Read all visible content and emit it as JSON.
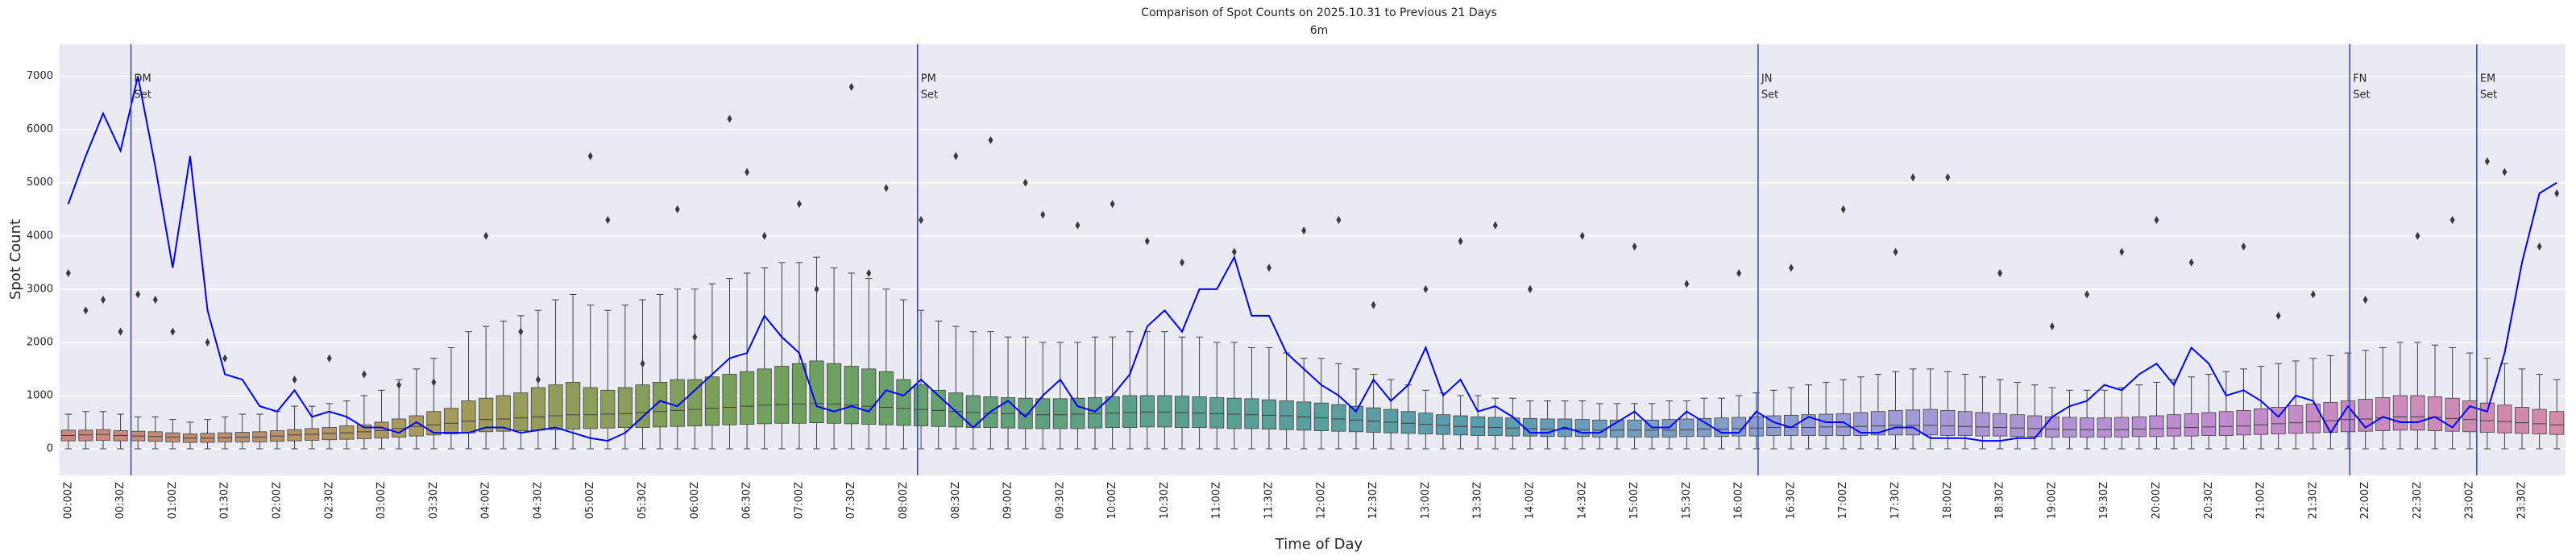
{
  "chart_data": {
    "type": "box",
    "title": "Comparison of Spot Counts on 2025.10.31 to Previous 21 Days",
    "subtitle": "6m",
    "x_label": "Time of Day",
    "y_label": "Spot Count",
    "ylim": [
      -500,
      7600
    ],
    "yticks": [
      0,
      1000,
      2000,
      3000,
      4000,
      5000,
      6000,
      7000
    ],
    "grid": true,
    "background": "#eaeaf2",
    "palette": [
      "#c9877f",
      "#a89a5a",
      "#6fa15a",
      "#5aa08a",
      "#5a9dad",
      "#9a9dd6",
      "#c08cd0",
      "#d48aa8"
    ],
    "categories": [
      "00:00Z",
      null,
      null,
      "00:30Z",
      null,
      null,
      "01:00Z",
      null,
      null,
      "01:30Z",
      null,
      null,
      "02:00Z",
      null,
      null,
      "02:30Z",
      null,
      null,
      "03:00Z",
      null,
      null,
      "03:30Z",
      null,
      null,
      "04:00Z",
      null,
      null,
      "04:30Z",
      null,
      null,
      "05:00Z",
      null,
      null,
      "05:30Z",
      null,
      null,
      "06:00Z",
      null,
      null,
      "06:30Z",
      null,
      null,
      "07:00Z",
      null,
      null,
      "07:30Z",
      null,
      null,
      "08:00Z",
      null,
      null,
      "08:30Z",
      null,
      null,
      "09:00Z",
      null,
      null,
      "09:30Z",
      null,
      null,
      "10:00Z",
      null,
      null,
      "10:30Z",
      null,
      null,
      "11:00Z",
      null,
      null,
      "11:30Z",
      null,
      null,
      "12:00Z",
      null,
      null,
      "12:30Z",
      null,
      null,
      "13:00Z",
      null,
      null,
      "13:30Z",
      null,
      null,
      "14:00Z",
      null,
      null,
      "14:30Z",
      null,
      null,
      "15:00Z",
      null,
      null,
      "15:30Z",
      null,
      null,
      "16:00Z",
      null,
      null,
      "16:30Z",
      null,
      null,
      "17:00Z",
      null,
      null,
      "17:30Z",
      null,
      null,
      "18:00Z",
      null,
      null,
      "18:30Z",
      null,
      null,
      "19:00Z",
      null,
      null,
      "19:30Z",
      null,
      null,
      "20:00Z",
      null,
      null,
      "20:30Z",
      null,
      null,
      "21:00Z",
      null,
      null,
      "21:30Z",
      null,
      null,
      "22:00Z",
      null,
      null,
      "22:30Z",
      null,
      null,
      "23:00Z",
      null,
      null,
      "23:30Z",
      null,
      null
    ],
    "boxes": [
      [
        0,
        150,
        250,
        350,
        650
      ],
      [
        0,
        150,
        260,
        350,
        700
      ],
      [
        0,
        160,
        270,
        360,
        700
      ],
      [
        0,
        150,
        250,
        340,
        650
      ],
      [
        0,
        150,
        240,
        330,
        600
      ],
      [
        0,
        140,
        230,
        320,
        600
      ],
      [
        0,
        130,
        220,
        300,
        550
      ],
      [
        0,
        120,
        200,
        280,
        500
      ],
      [
        0,
        120,
        200,
        290,
        550
      ],
      [
        0,
        130,
        210,
        300,
        600
      ],
      [
        0,
        130,
        220,
        310,
        650
      ],
      [
        0,
        130,
        220,
        320,
        650
      ],
      [
        0,
        140,
        240,
        340,
        700
      ],
      [
        0,
        150,
        260,
        360,
        800
      ],
      [
        0,
        160,
        270,
        380,
        800
      ],
      [
        0,
        170,
        290,
        400,
        850
      ],
      [
        0,
        180,
        300,
        430,
        900
      ],
      [
        0,
        190,
        320,
        450,
        1000
      ],
      [
        0,
        200,
        340,
        500,
        1100
      ],
      [
        0,
        220,
        380,
        560,
        1300
      ],
      [
        0,
        240,
        420,
        620,
        1500
      ],
      [
        0,
        260,
        450,
        700,
        1700
      ],
      [
        0,
        280,
        480,
        760,
        1900
      ],
      [
        0,
        300,
        520,
        900,
        2200
      ],
      [
        0,
        320,
        550,
        950,
        2300
      ],
      [
        0,
        330,
        560,
        1000,
        2400
      ],
      [
        0,
        340,
        580,
        1050,
        2500
      ],
      [
        0,
        350,
        600,
        1150,
        2600
      ],
      [
        0,
        360,
        620,
        1200,
        2800
      ],
      [
        0,
        370,
        640,
        1250,
        2900
      ],
      [
        0,
        380,
        640,
        1150,
        2700
      ],
      [
        0,
        390,
        650,
        1100,
        2600
      ],
      [
        0,
        400,
        660,
        1150,
        2700
      ],
      [
        0,
        400,
        680,
        1200,
        2800
      ],
      [
        0,
        410,
        700,
        1250,
        2900
      ],
      [
        0,
        420,
        720,
        1300,
        3000
      ],
      [
        0,
        430,
        740,
        1300,
        3000
      ],
      [
        0,
        440,
        760,
        1350,
        3100
      ],
      [
        0,
        450,
        780,
        1400,
        3200
      ],
      [
        0,
        460,
        800,
        1450,
        3300
      ],
      [
        0,
        470,
        820,
        1500,
        3400
      ],
      [
        0,
        480,
        830,
        1550,
        3500
      ],
      [
        0,
        480,
        840,
        1600,
        3500
      ],
      [
        0,
        490,
        850,
        1650,
        3600
      ],
      [
        0,
        480,
        840,
        1600,
        3400
      ],
      [
        0,
        470,
        820,
        1550,
        3300
      ],
      [
        0,
        460,
        800,
        1500,
        3200
      ],
      [
        0,
        450,
        780,
        1450,
        3000
      ],
      [
        0,
        440,
        760,
        1300,
        2800
      ],
      [
        0,
        430,
        740,
        1200,
        2600
      ],
      [
        0,
        420,
        720,
        1100,
        2400
      ],
      [
        0,
        410,
        700,
        1050,
        2300
      ],
      [
        0,
        400,
        680,
        1000,
        2200
      ],
      [
        0,
        400,
        670,
        980,
        2200
      ],
      [
        0,
        390,
        660,
        960,
        2100
      ],
      [
        0,
        380,
        650,
        950,
        2100
      ],
      [
        0,
        380,
        640,
        940,
        2000
      ],
      [
        0,
        380,
        640,
        940,
        2000
      ],
      [
        0,
        380,
        650,
        950,
        2000
      ],
      [
        0,
        390,
        660,
        960,
        2100
      ],
      [
        0,
        400,
        670,
        980,
        2100
      ],
      [
        0,
        400,
        680,
        1000,
        2200
      ],
      [
        0,
        410,
        690,
        1000,
        2200
      ],
      [
        0,
        410,
        690,
        1000,
        2200
      ],
      [
        0,
        400,
        680,
        990,
        2100
      ],
      [
        0,
        400,
        670,
        980,
        2100
      ],
      [
        0,
        390,
        660,
        960,
        2000
      ],
      [
        0,
        380,
        650,
        950,
        2000
      ],
      [
        0,
        380,
        640,
        940,
        1900
      ],
      [
        0,
        370,
        630,
        920,
        1900
      ],
      [
        0,
        360,
        620,
        900,
        1800
      ],
      [
        0,
        350,
        600,
        880,
        1700
      ],
      [
        0,
        340,
        580,
        860,
        1700
      ],
      [
        0,
        330,
        560,
        830,
        1600
      ],
      [
        0,
        320,
        540,
        800,
        1500
      ],
      [
        0,
        310,
        520,
        770,
        1400
      ],
      [
        0,
        300,
        500,
        740,
        1300
      ],
      [
        0,
        290,
        480,
        700,
        1200
      ],
      [
        0,
        280,
        460,
        670,
        1100
      ],
      [
        0,
        270,
        440,
        640,
        1050
      ],
      [
        0,
        260,
        420,
        620,
        1000
      ],
      [
        0,
        250,
        410,
        600,
        1000
      ],
      [
        0,
        250,
        400,
        590,
        950
      ],
      [
        0,
        240,
        390,
        580,
        950
      ],
      [
        0,
        240,
        380,
        570,
        900
      ],
      [
        0,
        230,
        370,
        560,
        900
      ],
      [
        0,
        230,
        370,
        560,
        900
      ],
      [
        0,
        230,
        360,
        550,
        900
      ],
      [
        0,
        220,
        350,
        540,
        850
      ],
      [
        0,
        220,
        350,
        540,
        850
      ],
      [
        0,
        220,
        350,
        540,
        850
      ],
      [
        0,
        220,
        350,
        540,
        850
      ],
      [
        0,
        220,
        350,
        550,
        900
      ],
      [
        0,
        230,
        360,
        560,
        900
      ],
      [
        0,
        230,
        370,
        570,
        950
      ],
      [
        0,
        230,
        370,
        580,
        950
      ],
      [
        0,
        240,
        380,
        590,
        1000
      ],
      [
        0,
        240,
        390,
        600,
        1050
      ],
      [
        0,
        250,
        400,
        620,
        1100
      ],
      [
        0,
        250,
        400,
        630,
        1150
      ],
      [
        0,
        250,
        400,
        640,
        1200
      ],
      [
        0,
        250,
        410,
        650,
        1250
      ],
      [
        0,
        250,
        410,
        660,
        1300
      ],
      [
        0,
        250,
        420,
        680,
        1350
      ],
      [
        0,
        260,
        430,
        700,
        1400
      ],
      [
        0,
        260,
        440,
        720,
        1450
      ],
      [
        0,
        260,
        440,
        730,
        1500
      ],
      [
        0,
        260,
        440,
        740,
        1500
      ],
      [
        0,
        250,
        430,
        720,
        1450
      ],
      [
        0,
        250,
        420,
        700,
        1400
      ],
      [
        0,
        240,
        410,
        680,
        1350
      ],
      [
        0,
        240,
        400,
        660,
        1300
      ],
      [
        0,
        230,
        390,
        640,
        1250
      ],
      [
        0,
        230,
        380,
        620,
        1200
      ],
      [
        0,
        220,
        370,
        600,
        1150
      ],
      [
        0,
        220,
        360,
        590,
        1100
      ],
      [
        0,
        220,
        360,
        580,
        1100
      ],
      [
        0,
        220,
        360,
        580,
        1100
      ],
      [
        0,
        220,
        360,
        590,
        1150
      ],
      [
        0,
        230,
        370,
        600,
        1200
      ],
      [
        0,
        230,
        380,
        620,
        1250
      ],
      [
        0,
        240,
        390,
        640,
        1300
      ],
      [
        0,
        240,
        400,
        660,
        1350
      ],
      [
        0,
        250,
        410,
        680,
        1400
      ],
      [
        0,
        250,
        420,
        700,
        1450
      ],
      [
        0,
        260,
        430,
        720,
        1500
      ],
      [
        0,
        270,
        450,
        750,
        1550
      ],
      [
        0,
        280,
        470,
        780,
        1600
      ],
      [
        0,
        290,
        490,
        810,
        1650
      ],
      [
        0,
        300,
        510,
        840,
        1700
      ],
      [
        0,
        310,
        530,
        870,
        1750
      ],
      [
        0,
        320,
        550,
        900,
        1800
      ],
      [
        0,
        330,
        560,
        930,
        1850
      ],
      [
        0,
        340,
        580,
        960,
        1900
      ],
      [
        0,
        350,
        600,
        1000,
        2000
      ],
      [
        0,
        350,
        600,
        1000,
        2000
      ],
      [
        0,
        340,
        590,
        980,
        1950
      ],
      [
        0,
        330,
        570,
        950,
        1900
      ],
      [
        0,
        320,
        550,
        900,
        1800
      ],
      [
        0,
        310,
        530,
        860,
        1700
      ],
      [
        0,
        300,
        510,
        820,
        1600
      ],
      [
        0,
        290,
        490,
        780,
        1500
      ],
      [
        0,
        280,
        470,
        740,
        1400
      ],
      [
        0,
        270,
        450,
        700,
        1300
      ]
    ],
    "outliers": [
      [
        0,
        3300
      ],
      [
        1,
        2600
      ],
      [
        2,
        2800
      ],
      [
        3,
        2200
      ],
      [
        4,
        2900
      ],
      [
        5,
        2800
      ],
      [
        6,
        2200
      ],
      [
        8,
        2000
      ],
      [
        9,
        1700
      ],
      [
        13,
        1300
      ],
      [
        15,
        1700
      ],
      [
        17,
        1400
      ],
      [
        19,
        1200
      ],
      [
        21,
        1250
      ],
      [
        24,
        4000
      ],
      [
        26,
        2200
      ],
      [
        27,
        1300
      ],
      [
        30,
        5500
      ],
      [
        31,
        4300
      ],
      [
        33,
        1600
      ],
      [
        35,
        4500
      ],
      [
        36,
        2100
      ],
      [
        38,
        6200
      ],
      [
        39,
        5200
      ],
      [
        40,
        4000
      ],
      [
        42,
        4600
      ],
      [
        43,
        3000
      ],
      [
        45,
        6800
      ],
      [
        46,
        3300
      ],
      [
        47,
        4900
      ],
      [
        49,
        4300
      ],
      [
        51,
        5500
      ],
      [
        53,
        5800
      ],
      [
        55,
        5000
      ],
      [
        56,
        4400
      ],
      [
        58,
        4200
      ],
      [
        60,
        4600
      ],
      [
        62,
        3900
      ],
      [
        64,
        3500
      ],
      [
        67,
        3700
      ],
      [
        69,
        3400
      ],
      [
        71,
        4100
      ],
      [
        73,
        4300
      ],
      [
        75,
        2700
      ],
      [
        78,
        3000
      ],
      [
        80,
        3900
      ],
      [
        82,
        4200
      ],
      [
        84,
        3000
      ],
      [
        87,
        4000
      ],
      [
        90,
        3800
      ],
      [
        93,
        3100
      ],
      [
        96,
        3300
      ],
      [
        99,
        3400
      ],
      [
        102,
        4500
      ],
      [
        105,
        3700
      ],
      [
        106,
        5100
      ],
      [
        108,
        5100
      ],
      [
        111,
        3300
      ],
      [
        114,
        2300
      ],
      [
        116,
        2900
      ],
      [
        118,
        3700
      ],
      [
        120,
        4300
      ],
      [
        122,
        3500
      ],
      [
        125,
        3800
      ],
      [
        127,
        2500
      ],
      [
        129,
        2900
      ],
      [
        132,
        2800
      ],
      [
        135,
        4000
      ],
      [
        137,
        4300
      ],
      [
        139,
        5400
      ],
      [
        140,
        5200
      ],
      [
        142,
        3800
      ],
      [
        143,
        4800
      ]
    ],
    "line_color": "#0000ff",
    "line_values": [
      4600,
      5500,
      6300,
      5600,
      7000,
      5300,
      3400,
      5500,
      2600,
      1400,
      1300,
      800,
      700,
      1100,
      600,
      700,
      600,
      400,
      400,
      300,
      500,
      300,
      300,
      300,
      400,
      400,
      300,
      350,
      400,
      300,
      200,
      150,
      300,
      600,
      900,
      800,
      1100,
      1400,
      1700,
      1800,
      2500,
      2100,
      1800,
      800,
      700,
      800,
      700,
      1100,
      1000,
      1300,
      1000,
      700,
      400,
      700,
      900,
      600,
      1000,
      1300,
      800,
      700,
      1000,
      1400,
      2300,
      2600,
      2200,
      3000,
      3000,
      3600,
      2500,
      2500,
      1800,
      1500,
      1200,
      1000,
      700,
      1300,
      900,
      1200,
      1900,
      1000,
      1300,
      700,
      800,
      600,
      300,
      300,
      400,
      300,
      300,
      500,
      700,
      400,
      400,
      700,
      500,
      300,
      300,
      700,
      500,
      400,
      600,
      500,
      500,
      300,
      300,
      400,
      400,
      200,
      200,
      200,
      150,
      150,
      200,
      200,
      600,
      800,
      900,
      1200,
      1100,
      1400,
      1600,
      1200,
      1900,
      1600,
      1000,
      1100,
      900,
      600,
      1000,
      900,
      300,
      800,
      400,
      600,
      500,
      500,
      600,
      400,
      800,
      700,
      1800,
      3500,
      4800,
      5000
    ],
    "vline_color": "#2a48c0",
    "vlines": [
      {
        "x": 3.6,
        "label": [
          "DM",
          "Set"
        ]
      },
      {
        "x": 48.8,
        "label": [
          "PM",
          "Set"
        ]
      },
      {
        "x": 97.1,
        "label": [
          "JN",
          "Set"
        ]
      },
      {
        "x": 131.1,
        "label": [
          "FN",
          "Set"
        ]
      },
      {
        "x": 138.4,
        "label": [
          "EM",
          "Set"
        ]
      }
    ]
  }
}
